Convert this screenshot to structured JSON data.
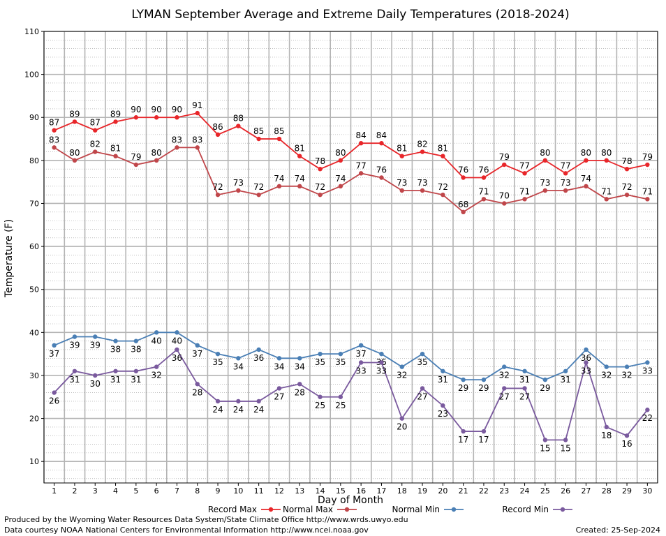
{
  "chart_data": {
    "type": "line",
    "title": "LYMAN September Average and Extreme Daily Temperatures (2018-2024)",
    "xlabel": "Day of Month",
    "ylabel": "Temperature (F)",
    "ylim": [
      5,
      110
    ],
    "yticks": [
      10,
      20,
      30,
      40,
      50,
      60,
      70,
      80,
      90,
      100,
      110
    ],
    "x": [
      1,
      2,
      3,
      4,
      5,
      6,
      7,
      8,
      9,
      10,
      11,
      12,
      13,
      14,
      15,
      16,
      17,
      18,
      19,
      20,
      21,
      22,
      23,
      24,
      25,
      26,
      27,
      28,
      29,
      30
    ],
    "grid": true,
    "legend_position": "bottom",
    "series": [
      {
        "name": "Record Max",
        "color": "#e8262a",
        "label_position": "above",
        "values": [
          87,
          89,
          87,
          89,
          90,
          90,
          90,
          91,
          86,
          88,
          85,
          85,
          81,
          78,
          80,
          84,
          84,
          81,
          82,
          81,
          76,
          76,
          79,
          77,
          80,
          77,
          80,
          80,
          78,
          79
        ]
      },
      {
        "name": "Normal Max",
        "color": "#c0464a",
        "label_position": "above",
        "values": [
          83,
          80,
          82,
          81,
          79,
          80,
          83,
          83,
          72,
          73,
          72,
          74,
          74,
          72,
          74,
          77,
          76,
          73,
          73,
          72,
          68,
          71,
          70,
          71,
          73,
          73,
          74,
          71,
          72,
          71
        ]
      },
      {
        "name": "Normal Min",
        "color": "#4a7fb5",
        "label_position": "below",
        "values": [
          37,
          39,
          39,
          38,
          38,
          40,
          40,
          37,
          35,
          34,
          36,
          34,
          34,
          35,
          35,
          37,
          35,
          32,
          35,
          31,
          29,
          29,
          32,
          31,
          29,
          31,
          36,
          32,
          32,
          33
        ]
      },
      {
        "name": "Record Min",
        "color": "#7a5a9e",
        "label_position": "below",
        "values": [
          26,
          31,
          30,
          31,
          31,
          32,
          36,
          28,
          24,
          24,
          24,
          27,
          28,
          25,
          25,
          33,
          33,
          20,
          27,
          23,
          17,
          17,
          27,
          27,
          15,
          15,
          33,
          18,
          16,
          22
        ]
      }
    ]
  },
  "footer": {
    "produced_by": "Produced by the Wyoming Water Resources Data System/State Climate Office http://www.wrds.uwyo.edu",
    "courtesy": "Data courtesy NOAA National Centers for Environmental Information http://www.ncei.noaa.gov",
    "created": "Created:  25-Sep-2024"
  }
}
